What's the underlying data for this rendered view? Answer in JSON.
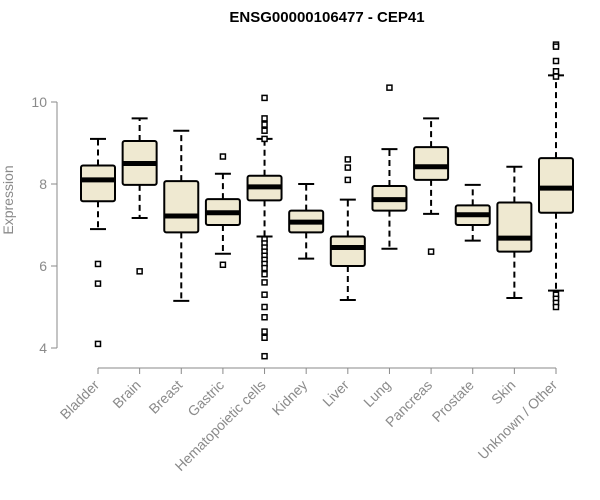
{
  "chart_data": {
    "type": "box",
    "title": "ENSG00000106477 - CEP41",
    "xlabel": "",
    "ylabel": "Expression",
    "ylim": [
      3.6,
      11.8
    ],
    "yticks": [
      4,
      6,
      8,
      10
    ],
    "grid": false,
    "colors": {
      "box_fill": "#efe9d1",
      "box_stroke": "#000000",
      "axis": "#8a8a8a"
    },
    "categories": [
      "Bladder",
      "Brain",
      "Breast",
      "Gastric",
      "Hematopoietic cells",
      "Kidney",
      "Liver",
      "Lung",
      "Pancreas",
      "Prostate",
      "Skin",
      "Unknown / Other"
    ],
    "boxes": [
      {
        "whisker_low": 6.9,
        "q1": 7.58,
        "median": 8.1,
        "q3": 8.45,
        "whisker_high": 9.1,
        "outliers": [
          6.05,
          5.57,
          4.1
        ]
      },
      {
        "whisker_low": 7.17,
        "q1": 7.98,
        "median": 8.5,
        "q3": 9.05,
        "whisker_high": 9.6,
        "outliers": [
          5.87
        ]
      },
      {
        "whisker_low": 5.15,
        "q1": 6.82,
        "median": 7.22,
        "q3": 8.07,
        "whisker_high": 9.3,
        "outliers": []
      },
      {
        "whisker_low": 6.3,
        "q1": 7.0,
        "median": 7.3,
        "q3": 7.63,
        "whisker_high": 8.25,
        "outliers": [
          8.67,
          6.03
        ]
      },
      {
        "whisker_low": 6.72,
        "q1": 7.6,
        "median": 7.93,
        "q3": 8.2,
        "whisker_high": 9.1,
        "outliers": [
          10.1,
          9.6,
          9.45,
          9.3,
          9.1,
          6.65,
          6.55,
          6.45,
          6.35,
          6.25,
          6.15,
          6.05,
          5.95,
          5.8,
          5.6,
          5.3,
          5.0,
          4.75,
          4.4,
          4.25,
          3.8
        ]
      },
      {
        "whisker_low": 6.18,
        "q1": 6.82,
        "median": 7.07,
        "q3": 7.35,
        "whisker_high": 8.0,
        "outliers": []
      },
      {
        "whisker_low": 5.17,
        "q1": 6.0,
        "median": 6.45,
        "q3": 6.72,
        "whisker_high": 7.62,
        "outliers": [
          8.6,
          8.4,
          8.1
        ]
      },
      {
        "whisker_low": 6.42,
        "q1": 7.35,
        "median": 7.62,
        "q3": 7.95,
        "whisker_high": 8.85,
        "outliers": [
          10.35
        ]
      },
      {
        "whisker_low": 7.27,
        "q1": 8.1,
        "median": 8.42,
        "q3": 8.9,
        "whisker_high": 9.6,
        "outliers": [
          6.35
        ]
      },
      {
        "whisker_low": 6.62,
        "q1": 7.0,
        "median": 7.25,
        "q3": 7.48,
        "whisker_high": 7.98,
        "outliers": []
      },
      {
        "whisker_low": 5.22,
        "q1": 6.35,
        "median": 6.68,
        "q3": 7.55,
        "whisker_high": 8.42,
        "outliers": []
      },
      {
        "whisker_low": 5.4,
        "q1": 7.3,
        "median": 7.9,
        "q3": 8.63,
        "whisker_high": 10.65,
        "outliers": [
          11.4,
          11.35,
          11.0,
          10.75,
          10.62,
          5.3,
          5.2,
          5.1,
          5.0
        ]
      }
    ]
  }
}
